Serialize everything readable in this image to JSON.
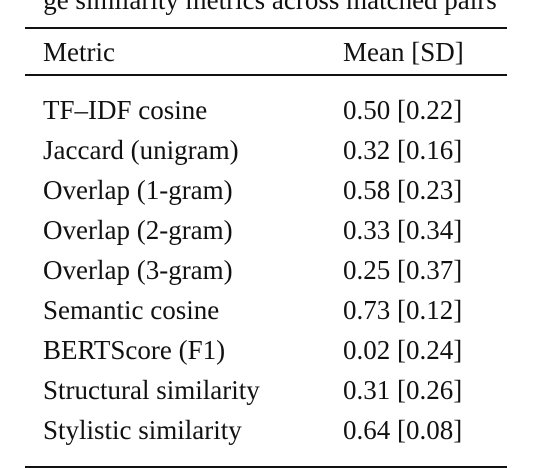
{
  "caption": "ge similarity metrics across matched pairs",
  "table": {
    "headers": {
      "metric": "Metric",
      "value": "Mean [SD]"
    },
    "rows": [
      {
        "metric": "TF–IDF cosine",
        "value": "0.50 [0.22]"
      },
      {
        "metric": "Jaccard (unigram)",
        "value": "0.32 [0.16]"
      },
      {
        "metric": "Overlap (1-gram)",
        "value": "0.58 [0.23]"
      },
      {
        "metric": "Overlap (2-gram)",
        "value": "0.33 [0.34]"
      },
      {
        "metric": "Overlap (3-gram)",
        "value": "0.25 [0.37]"
      },
      {
        "metric": "Semantic cosine",
        "value": "0.73 [0.12]"
      },
      {
        "metric": "BERTScore (F1)",
        "value": "0.02 [0.24]"
      },
      {
        "metric": "Structural similarity",
        "value": "0.31 [0.26]"
      },
      {
        "metric": "Stylistic similarity",
        "value": "0.64 [0.08]"
      }
    ]
  }
}
